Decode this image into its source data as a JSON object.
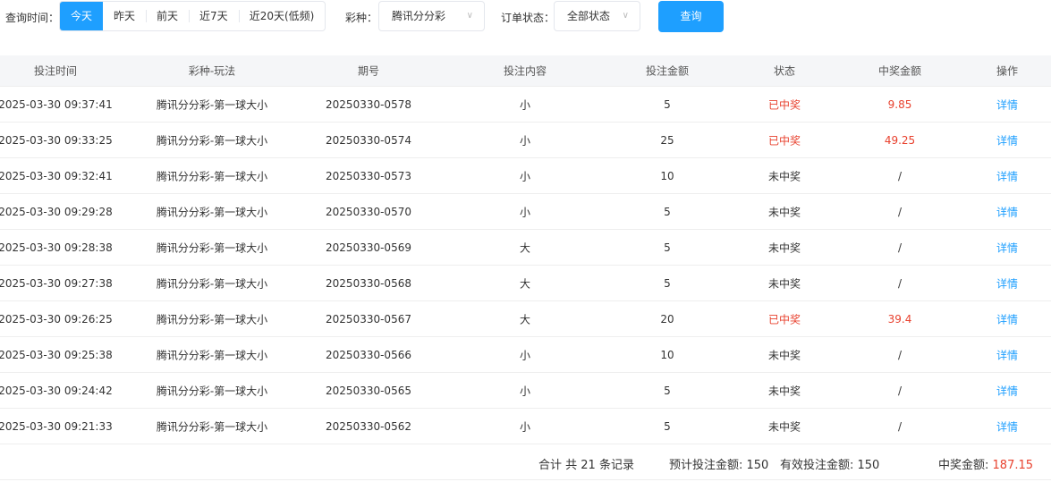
{
  "filter": {
    "time_label": "查询时间：",
    "time_options": [
      "今天",
      "昨天",
      "前天",
      "近7天",
      "近20天(低频)"
    ],
    "lottery_label": "彩种：",
    "lottery_value": "腾讯分分彩",
    "status_label": "订单状态：",
    "status_value": "全部状态",
    "search_label": "查询"
  },
  "table": {
    "headers": [
      "投注时间",
      "彩种-玩法",
      "期号",
      "投注内容",
      "投注金额",
      "状态",
      "中奖金额",
      "操作"
    ],
    "rows": [
      [
        "2025-03-30 09:37:41",
        "腾讯分分彩-第一球大小",
        "20250330-0578",
        "小",
        "5",
        "已中奖",
        "9.85",
        "详情"
      ],
      [
        "2025-03-30 09:33:25",
        "腾讯分分彩-第一球大小",
        "20250330-0574",
        "小",
        "25",
        "已中奖",
        "49.25",
        "详情"
      ],
      [
        "2025-03-30 09:32:41",
        "腾讯分分彩-第一球大小",
        "20250330-0573",
        "小",
        "10",
        "未中奖",
        "/",
        "详情"
      ],
      [
        "2025-03-30 09:29:28",
        "腾讯分分彩-第一球大小",
        "20250330-0570",
        "小",
        "5",
        "未中奖",
        "/",
        "详情"
      ],
      [
        "2025-03-30 09:28:38",
        "腾讯分分彩-第一球大小",
        "20250330-0569",
        "大",
        "5",
        "未中奖",
        "/",
        "详情"
      ],
      [
        "2025-03-30 09:27:38",
        "腾讯分分彩-第一球大小",
        "20250330-0568",
        "大",
        "5",
        "未中奖",
        "/",
        "详情"
      ],
      [
        "2025-03-30 09:26:25",
        "腾讯分分彩-第一球大小",
        "20250330-0567",
        "大",
        "20",
        "已中奖",
        "39.4",
        "详情"
      ],
      [
        "2025-03-30 09:25:38",
        "腾讯分分彩-第一球大小",
        "20250330-0566",
        "小",
        "10",
        "未中奖",
        "/",
        "详情"
      ],
      [
        "2025-03-30 09:24:42",
        "腾讯分分彩-第一球大小",
        "20250330-0565",
        "小",
        "5",
        "未中奖",
        "/",
        "详情"
      ],
      [
        "2025-03-30 09:21:33",
        "腾讯分分彩-第一球大小",
        "20250330-0562",
        "小",
        "5",
        "未中奖",
        "/",
        "详情"
      ]
    ]
  },
  "summary": {
    "total": "合计 共 21 条记录",
    "expected_label": "预计投注金额: 150",
    "valid_label": "有效投注金额: 150",
    "win_label": "中奖金额:",
    "win_value": "187.15"
  },
  "colors": {
    "accent": "#1e9fff",
    "win": "#e8412e"
  }
}
